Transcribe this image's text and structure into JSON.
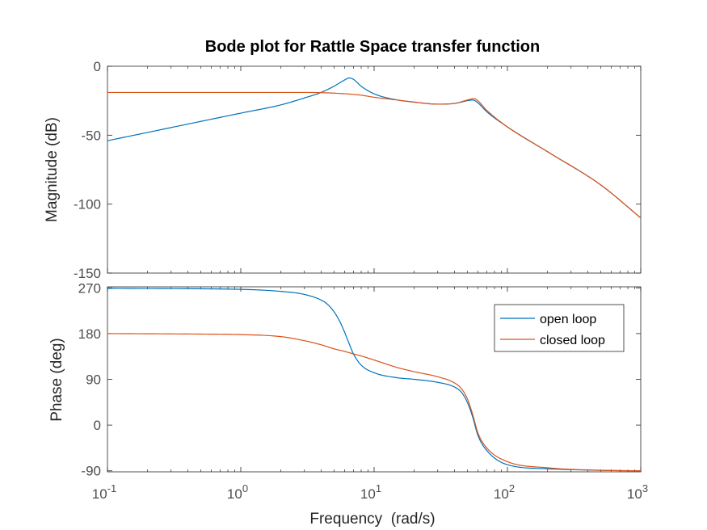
{
  "colors": {
    "open_loop": "#0072bd",
    "closed_loop": "#d95319",
    "axis": "#262626",
    "tick_text": "#4d4d4d"
  },
  "chart_data": {
    "type": "line",
    "title": "Bode plot for Rattle Space transfer function",
    "xlabel": "Frequency  (rad/s)",
    "xscale": "log",
    "xlim": [
      0.1,
      1000
    ],
    "x_tick_labels": [
      {
        "base": "10",
        "exp": "-1"
      },
      {
        "base": "10",
        "exp": "0"
      },
      {
        "base": "10",
        "exp": "1"
      },
      {
        "base": "10",
        "exp": "2"
      },
      {
        "base": "10",
        "exp": "3"
      }
    ],
    "legend": {
      "placement": "inside-right",
      "entries": [
        "open loop",
        "closed loop"
      ]
    },
    "panels": [
      {
        "id": "magnitude",
        "ylabel": "Magnitude (dB)",
        "ylim": [
          -150,
          0
        ],
        "yticks": [
          0,
          -50,
          -100,
          -150
        ],
        "ytick_labels": [
          "0",
          "-50",
          "-100",
          "-150"
        ],
        "series": [
          {
            "name": "open loop",
            "x": [
              0.1,
              0.2,
              0.5,
              1,
              2,
              3,
              4,
              5,
              6,
              6.5,
              7,
              8,
              10,
              15,
              20,
              30,
              40,
              50,
              55,
              60,
              70,
              100,
              200,
              500,
              1000
            ],
            "y": [
              -54,
              -48,
              -40,
              -34,
              -28,
              -23,
              -19,
              -14.5,
              -10,
              -8.5,
              -9.5,
              -14.5,
              -20,
              -24.5,
              -26,
              -27.5,
              -27,
              -25,
              -24.5,
              -26.5,
              -33,
              -44,
              -62,
              -86,
              -110
            ]
          },
          {
            "name": "closed loop",
            "x": [
              0.1,
              1,
              3,
              5,
              8,
              10,
              15,
              20,
              30,
              40,
              50,
              56,
              60,
              70,
              100,
              200,
              500,
              1000
            ],
            "y": [
              -19,
              -19,
              -19,
              -19.5,
              -21,
              -22.5,
              -24.5,
              -26,
              -27.5,
              -27,
              -24.5,
              -23.5,
              -25,
              -32,
              -44,
              -62,
              -86,
              -110
            ]
          }
        ]
      },
      {
        "id": "phase",
        "ylabel": "Phase (deg)",
        "ylim": [
          -92,
          272
        ],
        "yticks": [
          270,
          180,
          90,
          0,
          -90
        ],
        "ytick_labels": [
          "270",
          "180",
          "90",
          "0",
          "-90"
        ],
        "series": [
          {
            "name": "open loop",
            "x": [
              0.1,
              1,
              2,
              3,
              4,
              4.5,
              5,
              5.5,
              6,
              6.5,
              7,
              8,
              10,
              15,
              20,
              30,
              40,
              45,
              50,
              55,
              60,
              70,
              100,
              200,
              500,
              1000
            ],
            "y": [
              269,
              267,
              263,
              257,
              246,
              237,
              223,
              205,
              183,
              160,
              140,
              118,
              103,
              93,
              90,
              84,
              75,
              65,
              45,
              15,
              -20,
              -50,
              -78,
              -86,
              -89,
              -90
            ]
          },
          {
            "name": "closed loop",
            "x": [
              0.1,
              0.5,
              1,
              2,
              3,
              4,
              5,
              6,
              7,
              8,
              10,
              15,
              20,
              30,
              40,
              45,
              50,
              55,
              60,
              70,
              100,
              200,
              500,
              1000
            ],
            "y": [
              180,
              179,
              178,
              174,
              166,
              158,
              150,
              145,
              140,
              136,
              128,
              113,
              105,
              95,
              83,
              72,
              52,
              20,
              -15,
              -45,
              -72,
              -84,
              -89,
              -90
            ]
          }
        ]
      }
    ]
  }
}
